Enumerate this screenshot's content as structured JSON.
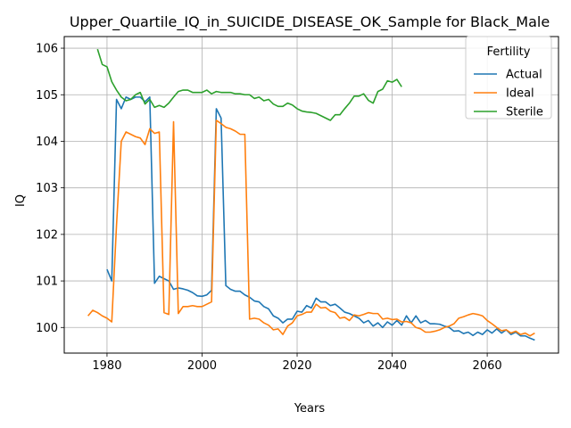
{
  "chart_data": {
    "type": "line",
    "title": "Upper_Quartile_IQ_in_SUICIDE_DISEASE_OK_Sample for Black_Male",
    "xlabel": "Years",
    "ylabel": "IQ",
    "xlim": [
      1971,
      2075
    ],
    "ylim": [
      99.45,
      106.25
    ],
    "x_ticks": [
      1980,
      2000,
      2020,
      2040,
      2060
    ],
    "y_ticks": [
      100,
      101,
      102,
      103,
      104,
      105,
      106
    ],
    "grid": true,
    "legend": {
      "title": "Fertility",
      "placement": "top-right"
    },
    "series": [
      {
        "name": "Actual",
        "color": "#1f77b4",
        "points": [
          [
            1980,
            101.25
          ],
          [
            1981,
            101.0
          ],
          [
            1982,
            104.9
          ],
          [
            1983,
            104.7
          ],
          [
            1984,
            104.95
          ],
          [
            1985,
            104.9
          ],
          [
            1986,
            104.95
          ],
          [
            1987,
            104.95
          ],
          [
            1988,
            104.85
          ],
          [
            1989,
            104.95
          ],
          [
            1990,
            100.95
          ],
          [
            1991,
            101.1
          ],
          [
            1992,
            101.05
          ],
          [
            1993,
            101.0
          ],
          [
            1994,
            100.82
          ],
          [
            1995,
            100.85
          ],
          [
            1996,
            100.83
          ],
          [
            1997,
            100.8
          ],
          [
            1998,
            100.75
          ],
          [
            1999,
            100.68
          ],
          [
            2000,
            100.67
          ],
          [
            2001,
            100.7
          ],
          [
            2002,
            100.8
          ],
          [
            2003,
            104.7
          ],
          [
            2004,
            104.5
          ],
          [
            2005,
            100.9
          ],
          [
            2006,
            100.82
          ],
          [
            2007,
            100.78
          ],
          [
            2008,
            100.78
          ],
          [
            2009,
            100.7
          ],
          [
            2010,
            100.65
          ],
          [
            2011,
            100.57
          ],
          [
            2012,
            100.55
          ],
          [
            2013,
            100.45
          ],
          [
            2014,
            100.4
          ],
          [
            2015,
            100.25
          ],
          [
            2016,
            100.2
          ],
          [
            2017,
            100.1
          ],
          [
            2018,
            100.18
          ],
          [
            2019,
            100.18
          ],
          [
            2020,
            100.35
          ],
          [
            2021,
            100.33
          ],
          [
            2022,
            100.47
          ],
          [
            2023,
            100.42
          ],
          [
            2024,
            100.63
          ],
          [
            2025,
            100.55
          ],
          [
            2026,
            100.55
          ],
          [
            2027,
            100.47
          ],
          [
            2028,
            100.5
          ],
          [
            2029,
            100.42
          ],
          [
            2030,
            100.33
          ],
          [
            2031,
            100.3
          ],
          [
            2032,
            100.25
          ],
          [
            2033,
            100.2
          ],
          [
            2034,
            100.1
          ],
          [
            2035,
            100.15
          ],
          [
            2036,
            100.03
          ],
          [
            2037,
            100.1
          ],
          [
            2038,
            100.0
          ],
          [
            2039,
            100.12
          ],
          [
            2040,
            100.05
          ],
          [
            2041,
            100.15
          ],
          [
            2042,
            100.05
          ],
          [
            2043,
            100.25
          ],
          [
            2044,
            100.1
          ],
          [
            2045,
            100.25
          ],
          [
            2046,
            100.1
          ],
          [
            2047,
            100.15
          ],
          [
            2048,
            100.08
          ],
          [
            2049,
            100.08
          ],
          [
            2050,
            100.07
          ],
          [
            2051,
            100.03
          ],
          [
            2052,
            100.0
          ],
          [
            2053,
            99.92
          ],
          [
            2054,
            99.93
          ],
          [
            2055,
            99.87
          ],
          [
            2056,
            99.9
          ],
          [
            2057,
            99.83
          ],
          [
            2058,
            99.9
          ],
          [
            2059,
            99.85
          ],
          [
            2060,
            99.95
          ],
          [
            2061,
            99.88
          ],
          [
            2062,
            99.97
          ],
          [
            2063,
            99.88
          ],
          [
            2064,
            99.95
          ],
          [
            2065,
            99.85
          ],
          [
            2066,
            99.9
          ],
          [
            2067,
            99.82
          ],
          [
            2068,
            99.82
          ],
          [
            2069,
            99.77
          ],
          [
            2070,
            99.73
          ]
        ]
      },
      {
        "name": "Ideal",
        "color": "#ff7f0e",
        "points": [
          [
            1976,
            100.25
          ],
          [
            1977,
            100.37
          ],
          [
            1978,
            100.32
          ],
          [
            1979,
            100.25
          ],
          [
            1980,
            100.2
          ],
          [
            1981,
            100.12
          ],
          [
            1982,
            102.2
          ],
          [
            1983,
            104.0
          ],
          [
            1984,
            104.2
          ],
          [
            1985,
            104.15
          ],
          [
            1986,
            104.1
          ],
          [
            1987,
            104.07
          ],
          [
            1988,
            103.93
          ],
          [
            1989,
            104.27
          ],
          [
            1990,
            104.17
          ],
          [
            1991,
            104.2
          ],
          [
            1992,
            100.32
          ],
          [
            1993,
            100.28
          ],
          [
            1994,
            104.42
          ],
          [
            1995,
            100.3
          ],
          [
            1996,
            100.45
          ],
          [
            1997,
            100.45
          ],
          [
            1998,
            100.47
          ],
          [
            1999,
            100.45
          ],
          [
            2000,
            100.45
          ],
          [
            2001,
            100.5
          ],
          [
            2002,
            100.55
          ],
          [
            2003,
            104.45
          ],
          [
            2004,
            104.38
          ],
          [
            2005,
            104.3
          ],
          [
            2006,
            104.27
          ],
          [
            2007,
            104.22
          ],
          [
            2008,
            104.15
          ],
          [
            2009,
            104.15
          ],
          [
            2010,
            100.18
          ],
          [
            2011,
            100.2
          ],
          [
            2012,
            100.18
          ],
          [
            2013,
            100.1
          ],
          [
            2014,
            100.05
          ],
          [
            2015,
            99.95
          ],
          [
            2016,
            99.97
          ],
          [
            2017,
            99.85
          ],
          [
            2018,
            100.03
          ],
          [
            2019,
            100.1
          ],
          [
            2020,
            100.25
          ],
          [
            2021,
            100.28
          ],
          [
            2022,
            100.33
          ],
          [
            2023,
            100.33
          ],
          [
            2024,
            100.5
          ],
          [
            2025,
            100.42
          ],
          [
            2026,
            100.43
          ],
          [
            2027,
            100.35
          ],
          [
            2028,
            100.32
          ],
          [
            2029,
            100.2
          ],
          [
            2030,
            100.22
          ],
          [
            2031,
            100.15
          ],
          [
            2032,
            100.27
          ],
          [
            2033,
            100.25
          ],
          [
            2034,
            100.28
          ],
          [
            2035,
            100.32
          ],
          [
            2036,
            100.3
          ],
          [
            2037,
            100.3
          ],
          [
            2038,
            100.18
          ],
          [
            2039,
            100.2
          ],
          [
            2040,
            100.17
          ],
          [
            2041,
            100.18
          ],
          [
            2042,
            100.12
          ],
          [
            2043,
            100.13
          ],
          [
            2044,
            100.1
          ],
          [
            2045,
            100.0
          ],
          [
            2046,
            99.97
          ],
          [
            2047,
            99.9
          ],
          [
            2048,
            99.9
          ],
          [
            2049,
            99.92
          ],
          [
            2050,
            99.95
          ],
          [
            2051,
            100.0
          ],
          [
            2052,
            100.03
          ],
          [
            2053,
            100.08
          ],
          [
            2054,
            100.2
          ],
          [
            2055,
            100.23
          ],
          [
            2056,
            100.27
          ],
          [
            2057,
            100.3
          ],
          [
            2058,
            100.28
          ],
          [
            2059,
            100.25
          ],
          [
            2060,
            100.15
          ],
          [
            2061,
            100.08
          ],
          [
            2062,
            100.0
          ],
          [
            2063,
            99.93
          ],
          [
            2064,
            99.95
          ],
          [
            2065,
            99.88
          ],
          [
            2066,
            99.92
          ],
          [
            2067,
            99.85
          ],
          [
            2068,
            99.88
          ],
          [
            2069,
            99.82
          ],
          [
            2070,
            99.88
          ]
        ]
      },
      {
        "name": "Sterile",
        "color": "#2ca02c",
        "points": [
          [
            1978,
            105.98
          ],
          [
            1979,
            105.65
          ],
          [
            1980,
            105.6
          ],
          [
            1981,
            105.28
          ],
          [
            1982,
            105.1
          ],
          [
            1983,
            104.95
          ],
          [
            1984,
            104.87
          ],
          [
            1985,
            104.9
          ],
          [
            1986,
            105.0
          ],
          [
            1987,
            105.05
          ],
          [
            1988,
            104.8
          ],
          [
            1989,
            104.9
          ],
          [
            1990,
            104.73
          ],
          [
            1991,
            104.77
          ],
          [
            1992,
            104.73
          ],
          [
            1993,
            104.82
          ],
          [
            1994,
            104.95
          ],
          [
            1995,
            105.07
          ],
          [
            1996,
            105.1
          ],
          [
            1997,
            105.1
          ],
          [
            1998,
            105.05
          ],
          [
            1999,
            105.05
          ],
          [
            2000,
            105.05
          ],
          [
            2001,
            105.1
          ],
          [
            2002,
            105.02
          ],
          [
            2003,
            105.07
          ],
          [
            2004,
            105.05
          ],
          [
            2005,
            105.05
          ],
          [
            2006,
            105.05
          ],
          [
            2007,
            105.02
          ],
          [
            2008,
            105.02
          ],
          [
            2009,
            105.0
          ],
          [
            2010,
            105.0
          ],
          [
            2011,
            104.92
          ],
          [
            2012,
            104.95
          ],
          [
            2013,
            104.87
          ],
          [
            2014,
            104.9
          ],
          [
            2015,
            104.8
          ],
          [
            2016,
            104.75
          ],
          [
            2017,
            104.75
          ],
          [
            2018,
            104.82
          ],
          [
            2019,
            104.78
          ],
          [
            2020,
            104.7
          ],
          [
            2021,
            104.65
          ],
          [
            2022,
            104.63
          ],
          [
            2023,
            104.62
          ],
          [
            2024,
            104.6
          ],
          [
            2025,
            104.55
          ],
          [
            2026,
            104.5
          ],
          [
            2027,
            104.45
          ],
          [
            2028,
            104.57
          ],
          [
            2029,
            104.57
          ],
          [
            2030,
            104.7
          ],
          [
            2031,
            104.82
          ],
          [
            2032,
            104.97
          ],
          [
            2033,
            104.97
          ],
          [
            2034,
            105.02
          ],
          [
            2035,
            104.88
          ],
          [
            2036,
            104.82
          ],
          [
            2037,
            105.07
          ],
          [
            2038,
            105.12
          ],
          [
            2039,
            105.3
          ],
          [
            2040,
            105.27
          ],
          [
            2041,
            105.33
          ],
          [
            2042,
            105.17
          ]
        ]
      }
    ]
  }
}
